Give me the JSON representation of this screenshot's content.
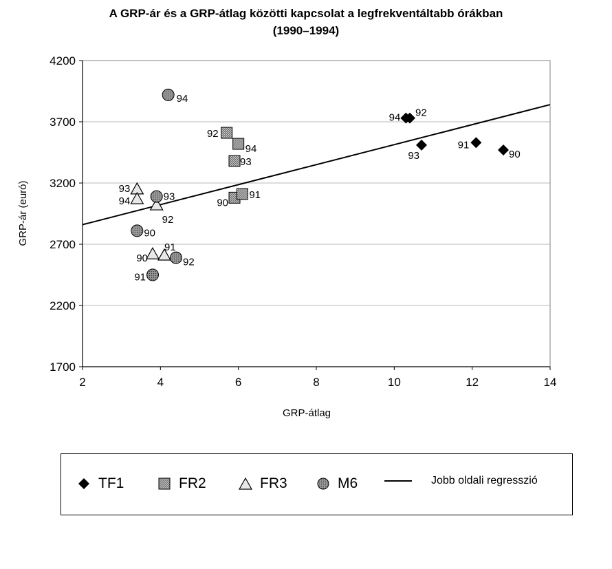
{
  "chart_data": {
    "type": "scatter",
    "title": "A GRP-ár és a GRP-átlag közötti kapcsolat a legfrekventáltabb órákban",
    "subtitle": "(1990–1994)",
    "xlabel": "GRP-átlag",
    "ylabel": "GRP-ár (euró)",
    "xlim": [
      2,
      14
    ],
    "ylim": [
      1700,
      4200
    ],
    "xticks": [
      "2",
      "4",
      "6",
      "8",
      "10",
      "12",
      "14"
    ],
    "yticks": [
      "1700",
      "2200",
      "2700",
      "3200",
      "3700",
      "4200"
    ],
    "grid": "horizontal",
    "legend_position": "bottom",
    "series": [
      {
        "name": "TF1",
        "marker": "diamond",
        "color": "#000000",
        "points": [
          {
            "x": 12.8,
            "y": 3470,
            "label": "90"
          },
          {
            "x": 12.1,
            "y": 3530,
            "label": "91"
          },
          {
            "x": 10.4,
            "y": 3730,
            "label": "92"
          },
          {
            "x": 10.7,
            "y": 3510,
            "label": "93"
          },
          {
            "x": 10.3,
            "y": 3730,
            "label": "94"
          }
        ]
      },
      {
        "name": "FR2",
        "marker": "square",
        "color": "#b0b0b0",
        "points": [
          {
            "x": 5.9,
            "y": 3080,
            "label": "90"
          },
          {
            "x": 6.1,
            "y": 3110,
            "label": "91"
          },
          {
            "x": 5.7,
            "y": 3610,
            "label": "92"
          },
          {
            "x": 5.9,
            "y": 3380,
            "label": "93"
          },
          {
            "x": 6.0,
            "y": 3520,
            "label": "94"
          }
        ]
      },
      {
        "name": "FR3",
        "marker": "triangle",
        "color": "#e0e0e0",
        "points": [
          {
            "x": 3.8,
            "y": 2620,
            "label": "90"
          },
          {
            "x": 4.1,
            "y": 2610,
            "label": "91"
          },
          {
            "x": 3.9,
            "y": 3020,
            "label": "92"
          },
          {
            "x": 3.4,
            "y": 3150,
            "label": "93"
          },
          {
            "x": 3.4,
            "y": 3070,
            "label": "94"
          }
        ]
      },
      {
        "name": "M6",
        "marker": "circle",
        "color": "#8a8a8a",
        "points": [
          {
            "x": 3.4,
            "y": 2810,
            "label": "90"
          },
          {
            "x": 3.8,
            "y": 2450,
            "label": "91"
          },
          {
            "x": 4.4,
            "y": 2590,
            "label": "92"
          },
          {
            "x": 3.9,
            "y": 3090,
            "label": "93"
          },
          {
            "x": 4.2,
            "y": 3920,
            "label": "94"
          }
        ]
      }
    ],
    "regression": {
      "name": "Jobb oldali regresszió",
      "x": [
        2,
        14
      ],
      "y": [
        2860,
        3840
      ]
    }
  }
}
